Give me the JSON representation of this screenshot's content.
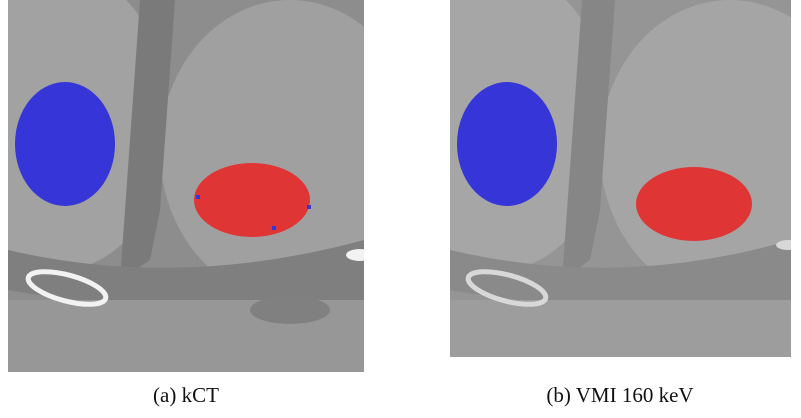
{
  "figure": {
    "panels": [
      {
        "caption": "(a) kCT"
      },
      {
        "caption": "(b) VMI 160 keV"
      }
    ]
  }
}
